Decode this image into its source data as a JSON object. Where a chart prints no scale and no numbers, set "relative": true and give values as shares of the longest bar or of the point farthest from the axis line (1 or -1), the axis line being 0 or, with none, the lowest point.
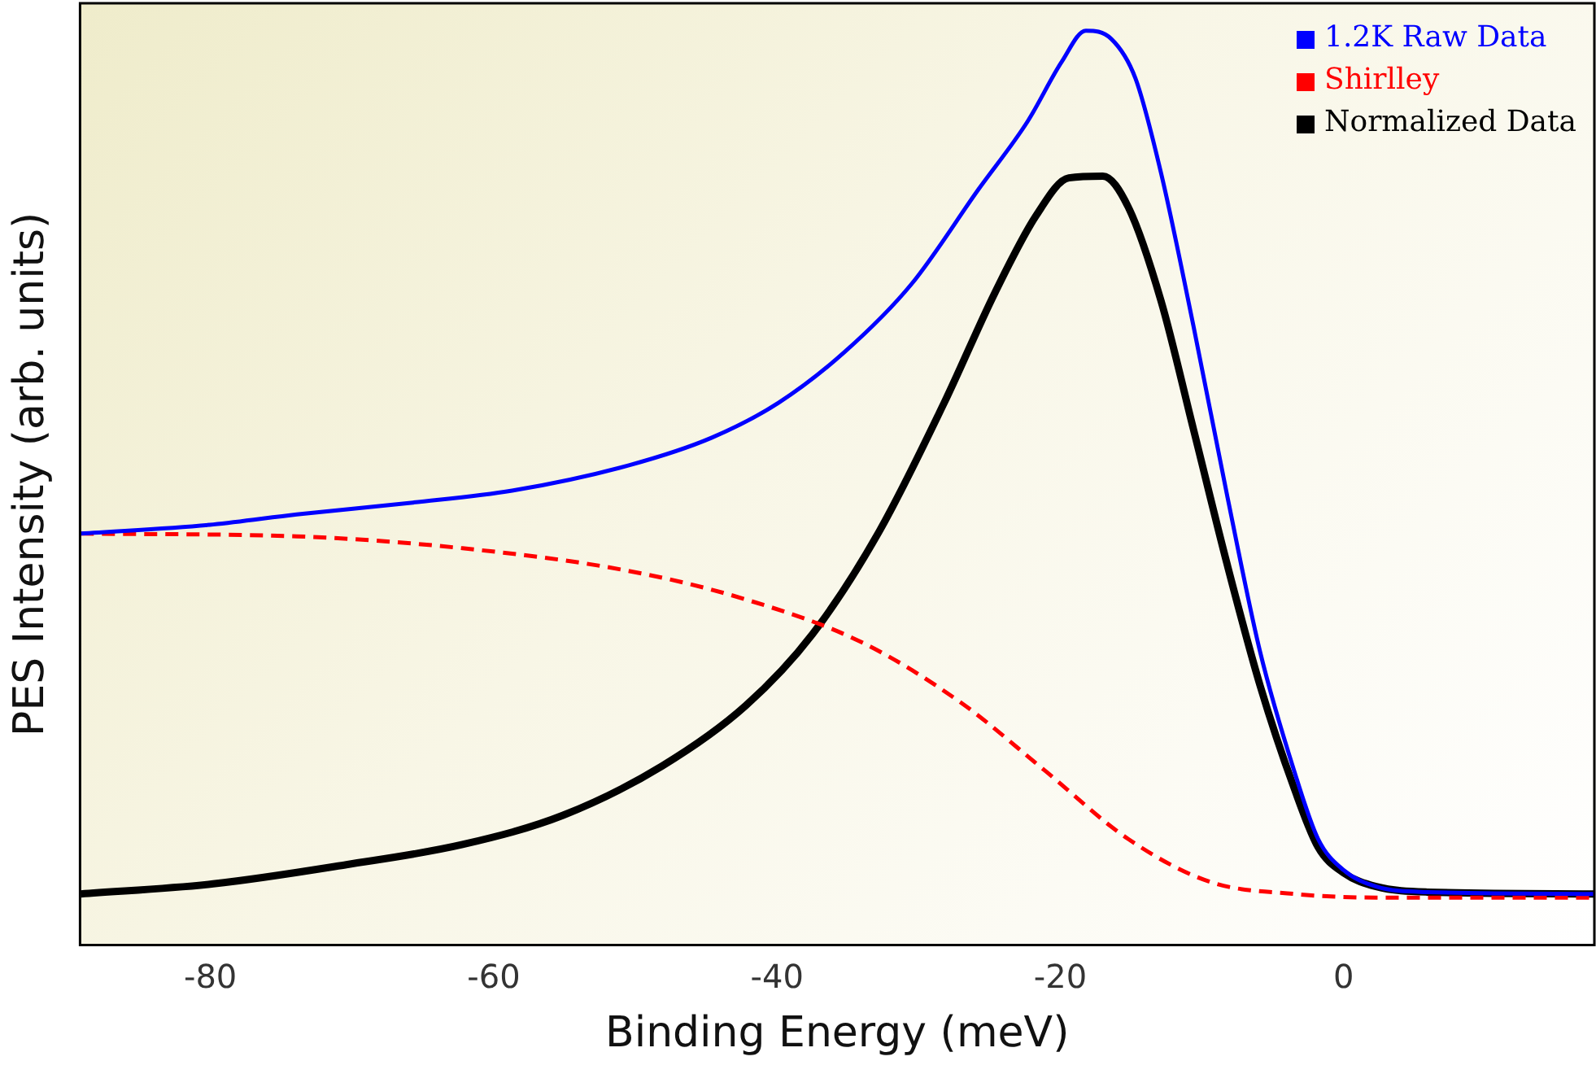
{
  "chart_data": {
    "type": "line",
    "relative": true,
    "xlabel": "Binding Energy (meV)",
    "ylabel": "PES Intensity (arb. units)",
    "xlim": [
      -89.2,
      17.7
    ],
    "xticks": [
      -80,
      -60,
      -40,
      -20,
      0
    ],
    "grid": false,
    "legend": "top right",
    "marker": "none",
    "series": [
      {
        "name": "1.2K Raw Data",
        "color": "#0000ff",
        "line_style": "solid",
        "x": [
          -89.15,
          -79.8,
          -73.9,
          -65.7,
          -58.7,
          -50.4,
          -44.6,
          -39.9,
          -35.2,
          -30.5,
          -25.8,
          -22.3,
          -19.9,
          -18.2,
          -16.4,
          -14.7,
          -12.9,
          -10.6,
          -8.2,
          -5.9,
          -3.5,
          -1.8,
          0,
          2.3,
          5.9,
          17.7
        ],
        "values": [
          0.45,
          0.46,
          0.471,
          0.484,
          0.497,
          0.525,
          0.555,
          0.593,
          0.649,
          0.723,
          0.826,
          0.901,
          0.966,
          1.0,
          0.991,
          0.948,
          0.845,
          0.677,
          0.49,
          0.321,
          0.191,
          0.116,
          0.082,
          0.064,
          0.058,
          0.056
        ]
      },
      {
        "name": "Shirlley",
        "color": "#ff0000",
        "line_style": "dashed",
        "x": [
          -89.15,
          -73.9,
          -62.2,
          -50.4,
          -42.2,
          -34.0,
          -27.0,
          -21.1,
          -15.2,
          -9.4,
          -3.5,
          2.3,
          17.7
        ],
        "values": [
          0.45,
          0.447,
          0.434,
          0.409,
          0.378,
          0.331,
          0.265,
          0.191,
          0.116,
          0.069,
          0.056,
          0.052,
          0.052
        ]
      },
      {
        "name": "Normalized Data",
        "color": "#000000",
        "line_style": "solid",
        "x": [
          -89.15,
          -79.8,
          -70.4,
          -62.2,
          -55.1,
          -48.1,
          -42.2,
          -37.5,
          -32.8,
          -28.2,
          -24.6,
          -21.7,
          -19.4,
          -17.0,
          -15.2,
          -12.9,
          -10.6,
          -8.2,
          -5.9,
          -3.5,
          -1.8,
          0,
          2.3,
          5.9,
          17.7
        ],
        "values": [
          0.056,
          0.067,
          0.088,
          0.11,
          0.142,
          0.196,
          0.262,
          0.34,
          0.452,
          0.593,
          0.714,
          0.798,
          0.839,
          0.841,
          0.807,
          0.705,
          0.564,
          0.415,
          0.284,
          0.172,
          0.107,
          0.079,
          0.064,
          0.058,
          0.056
        ]
      }
    ]
  }
}
